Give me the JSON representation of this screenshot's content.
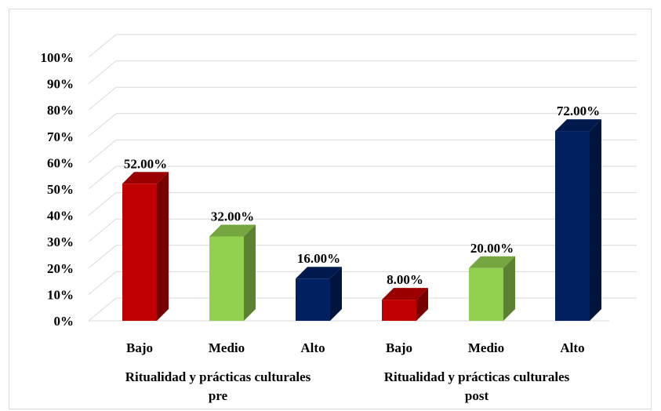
{
  "chart_data": {
    "type": "bar",
    "style": "3d-column",
    "y_tick_labels": [
      "0%",
      "10%",
      "20%",
      "30%",
      "40%",
      "50%",
      "60%",
      "70%",
      "80%",
      "90%",
      "100%"
    ],
    "ylim": [
      0,
      100
    ],
    "grid": true,
    "groups": [
      {
        "label_lines": [
          "Ritualidad y prácticas culturales",
          "pre"
        ],
        "bars": [
          {
            "category": "Bajo",
            "value": 52,
            "label": "52.00%",
            "color": "#c00000"
          },
          {
            "category": "Medio",
            "value": 32,
            "label": "32.00%",
            "color": "#92d050"
          },
          {
            "category": "Alto",
            "value": 16,
            "label": "16.00%",
            "color": "#002060"
          }
        ]
      },
      {
        "label_lines": [
          "Ritualidad y prácticas culturales",
          "post"
        ],
        "bars": [
          {
            "category": "Bajo",
            "value": 8,
            "label": "8.00%",
            "color": "#c00000"
          },
          {
            "category": "Medio",
            "value": 20,
            "label": "20.00%",
            "color": "#92d050"
          },
          {
            "category": "Alto",
            "value": 72,
            "label": "72.00%",
            "color": "#002060"
          }
        ]
      }
    ]
  }
}
